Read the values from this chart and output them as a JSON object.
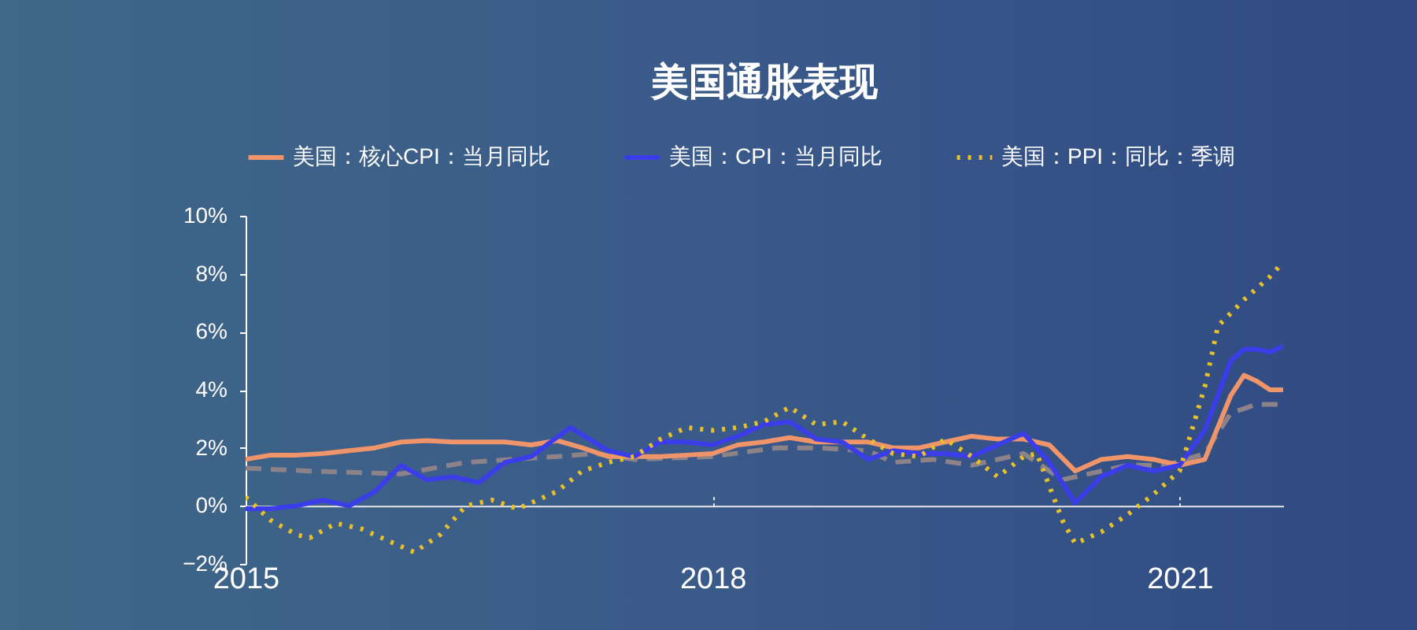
{
  "chart_data": {
    "type": "line",
    "title": "美国通胀表现",
    "legend": "top",
    "grid": false,
    "xlim": [
      "2015-01",
      "2021-09"
    ],
    "xticks": [
      "2015",
      "2018",
      "2021"
    ],
    "ylim": [
      -2,
      10
    ],
    "yticks": [
      {
        "value": -2,
        "label": "−2%"
      },
      {
        "value": 0,
        "label": "0%"
      },
      {
        "value": 2,
        "label": "2%"
      },
      {
        "value": 4,
        "label": "4%"
      },
      {
        "value": 6,
        "label": "6%"
      },
      {
        "value": 8,
        "label": "8%"
      },
      {
        "value": 10,
        "label": "10%"
      }
    ],
    "series": [
      {
        "color": "#8c8288",
        "line_style": "dashed",
        "x": [
          "2015-01",
          "2015-06",
          "2016-01",
          "2016-06",
          "2017-01",
          "2017-04",
          "2017-07",
          "2018-01",
          "2018-06",
          "2018-09",
          "2019-01",
          "2019-03",
          "2019-06",
          "2019-09",
          "2020-01",
          "2020-04",
          "2020-06",
          "2020-09",
          "2020-12",
          "2021-03",
          "2021-05",
          "2021-07",
          "2021-09"
        ],
        "values": [
          1.3,
          1.2,
          1.1,
          1.5,
          1.7,
          1.8,
          1.6,
          1.7,
          2.0,
          2.0,
          1.9,
          1.5,
          1.6,
          1.4,
          1.8,
          0.9,
          1.1,
          1.4,
          1.4,
          1.8,
          3.2,
          3.5,
          3.5
        ]
      },
      {
        "name": "美国：核心CPI：当月同比",
        "color": "#f0956a",
        "line_style": "solid",
        "x": [
          "2015-01",
          "2015-03",
          "2015-05",
          "2015-07",
          "2015-09",
          "2015-11",
          "2016-01",
          "2016-03",
          "2016-05",
          "2016-07",
          "2016-09",
          "2016-11",
          "2017-01",
          "2017-03",
          "2017-05",
          "2017-07",
          "2017-09",
          "2017-11",
          "2018-01",
          "2018-03",
          "2018-05",
          "2018-07",
          "2018-09",
          "2018-11",
          "2019-01",
          "2019-03",
          "2019-05",
          "2019-07",
          "2019-09",
          "2019-11",
          "2020-01",
          "2020-03",
          "2020-05",
          "2020-07",
          "2020-09",
          "2020-11",
          "2021-01",
          "2021-03",
          "2021-05",
          "2021-06",
          "2021-07",
          "2021-08",
          "2021-09"
        ],
        "values": [
          1.6,
          1.75,
          1.75,
          1.8,
          1.9,
          2.0,
          2.2,
          2.25,
          2.2,
          2.2,
          2.2,
          2.1,
          2.25,
          2.0,
          1.7,
          1.7,
          1.7,
          1.75,
          1.8,
          2.1,
          2.2,
          2.35,
          2.2,
          2.2,
          2.2,
          2.0,
          2.0,
          2.2,
          2.4,
          2.3,
          2.3,
          2.1,
          1.2,
          1.6,
          1.7,
          1.6,
          1.4,
          1.6,
          3.8,
          4.5,
          4.3,
          4.0,
          4.0
        ]
      },
      {
        "name": "美国：CPI：当月同比",
        "color": "#3b3ee8",
        "line_style": "solid",
        "x": [
          "2015-01",
          "2015-03",
          "2015-05",
          "2015-07",
          "2015-09",
          "2015-11",
          "2016-01",
          "2016-03",
          "2016-05",
          "2016-07",
          "2016-09",
          "2016-11",
          "2017-02",
          "2017-05",
          "2017-07",
          "2017-09",
          "2017-11",
          "2018-01",
          "2018-03",
          "2018-05",
          "2018-07",
          "2018-09",
          "2018-11",
          "2019-01",
          "2019-03",
          "2019-05",
          "2019-07",
          "2019-09",
          "2019-11",
          "2020-01",
          "2020-03",
          "2020-05",
          "2020-07",
          "2020-09",
          "2020-11",
          "2021-01",
          "2021-03",
          "2021-05",
          "2021-06",
          "2021-07",
          "2021-08",
          "2021-09"
        ],
        "values": [
          -0.1,
          -0.1,
          0.0,
          0.2,
          0.0,
          0.5,
          1.4,
          0.9,
          1.0,
          0.8,
          1.5,
          1.7,
          2.7,
          1.9,
          1.7,
          2.2,
          2.2,
          2.1,
          2.4,
          2.8,
          2.9,
          2.3,
          2.2,
          1.6,
          1.9,
          1.8,
          1.8,
          1.7,
          2.1,
          2.5,
          1.5,
          0.1,
          1.0,
          1.4,
          1.2,
          1.4,
          2.6,
          5.0,
          5.4,
          5.4,
          5.3,
          5.5
        ]
      },
      {
        "name": "美国：PPI：同比：季调",
        "color": "#e8c12a",
        "line_style": "dotted",
        "x": [
          "2015-01",
          "2015-03",
          "2015-05",
          "2015-06",
          "2015-08",
          "2015-10",
          "2015-12",
          "2016-02",
          "2016-04",
          "2016-06",
          "2016-08",
          "2016-10",
          "2017-01",
          "2017-03",
          "2017-05",
          "2017-07",
          "2017-09",
          "2017-11",
          "2018-01",
          "2018-03",
          "2018-05",
          "2018-07",
          "2018-09",
          "2018-11",
          "2019-01",
          "2019-03",
          "2019-05",
          "2019-07",
          "2019-09",
          "2019-11",
          "2020-01",
          "2020-02",
          "2020-04",
          "2020-05",
          "2020-07",
          "2020-09",
          "2020-11",
          "2021-01",
          "2021-03",
          "2021-04",
          "2021-06",
          "2021-08",
          "2021-09"
        ],
        "values": [
          0.3,
          -0.5,
          -1.0,
          -1.1,
          -0.6,
          -0.8,
          -1.2,
          -1.6,
          -1.0,
          0.0,
          0.2,
          -0.1,
          0.5,
          1.2,
          1.5,
          1.7,
          2.3,
          2.7,
          2.6,
          2.7,
          2.9,
          3.4,
          2.8,
          2.9,
          2.3,
          1.8,
          1.7,
          2.3,
          1.7,
          1.0,
          1.7,
          1.8,
          -0.5,
          -1.3,
          -0.9,
          -0.3,
          0.4,
          1.2,
          4.1,
          6.2,
          7.1,
          7.9,
          8.4
        ]
      }
    ]
  }
}
